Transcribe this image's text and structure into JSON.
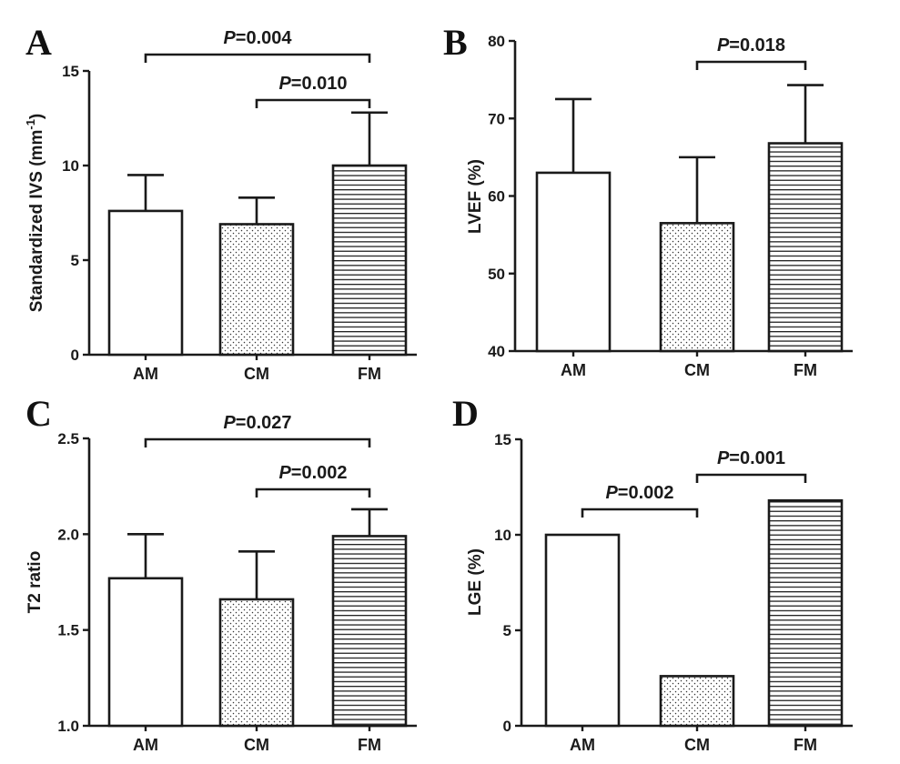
{
  "chart_data": [
    {
      "panel": "A",
      "type": "bar",
      "categories": [
        "AM",
        "CM",
        "FM"
      ],
      "values": [
        7.6,
        6.9,
        10.0
      ],
      "errors": [
        1.9,
        1.4,
        2.8
      ],
      "ylabel_main": "Standardized IVS (mm",
      "ylabel_sup": "-1",
      "ylabel_close": ")",
      "ylim": [
        0,
        15
      ],
      "yticks": [
        0,
        5,
        10,
        15
      ],
      "annotations": [
        {
          "from": "AM",
          "to": "FM",
          "label": "=0.004",
          "italic": "P"
        },
        {
          "from": "CM",
          "to": "FM",
          "label": "=0.010",
          "italic": "P"
        }
      ]
    },
    {
      "panel": "B",
      "type": "bar",
      "categories": [
        "AM",
        "CM",
        "FM"
      ],
      "values": [
        63.0,
        56.5,
        66.8
      ],
      "errors": [
        9.5,
        8.5,
        7.5
      ],
      "ylabel_main": "LVEF (%)",
      "ylim": [
        40,
        80
      ],
      "yticks": [
        40,
        50,
        60,
        70,
        80
      ],
      "annotations": [
        {
          "from": "CM",
          "to": "FM",
          "label": "=0.018",
          "italic": "P"
        }
      ]
    },
    {
      "panel": "C",
      "type": "bar",
      "categories": [
        "AM",
        "CM",
        "FM"
      ],
      "values": [
        1.77,
        1.66,
        1.99
      ],
      "errors": [
        0.23,
        0.25,
        0.14
      ],
      "ylabel_main": "T2 ratio",
      "ylim": [
        1.0,
        2.5
      ],
      "yticks": [
        "1.0",
        "1.5",
        "2.0",
        "2.5"
      ],
      "annotations": [
        {
          "from": "AM",
          "to": "FM",
          "label": "=0.027",
          "italic": "P"
        },
        {
          "from": "CM",
          "to": "FM",
          "label": "=0.002",
          "italic": "P"
        }
      ]
    },
    {
      "panel": "D",
      "type": "bar",
      "categories": [
        "AM",
        "CM",
        "FM"
      ],
      "values": [
        10.0,
        2.6,
        11.8
      ],
      "errors": [
        0,
        0,
        0
      ],
      "ylabel_main": "LGE (%)",
      "ylim": [
        0,
        15
      ],
      "yticks": [
        0,
        5,
        10,
        15
      ],
      "annotations": [
        {
          "from": "AM",
          "to": "CM",
          "label": "=0.002",
          "italic": "P"
        },
        {
          "from": "CM",
          "to": "FM",
          "label": "=0.001",
          "italic": "P"
        }
      ]
    }
  ],
  "colors": {
    "ink": "#1a1a1a",
    "bar_fill": "#ffffff",
    "pattern": "#333333"
  }
}
